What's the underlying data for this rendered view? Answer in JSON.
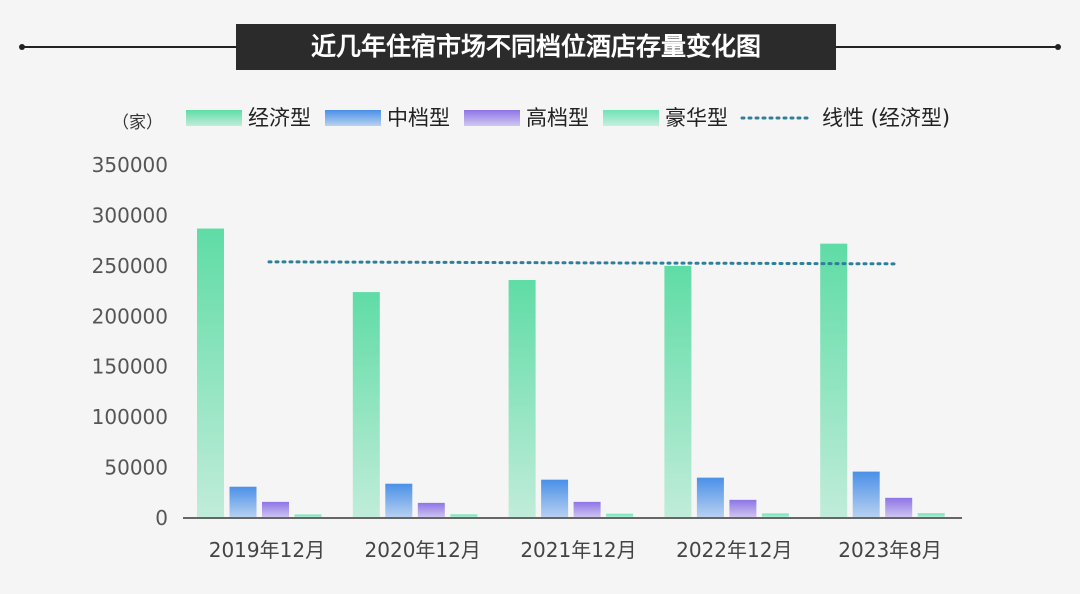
{
  "chart_data": {
    "type": "bar",
    "title": "近几年住宿市场不同档位酒店存量变化图",
    "unit_label": "（家）",
    "categories": [
      "2019年12月",
      "2020年12月",
      "2021年12月",
      "2022年12月",
      "2023年8月"
    ],
    "series": [
      {
        "name": "经济型",
        "values": [
          287000,
          224000,
          236000,
          250000,
          272000
        ],
        "color": "#5fdca6"
      },
      {
        "name": "中档型",
        "values": [
          31000,
          34000,
          38000,
          40000,
          46000
        ],
        "color": "#4a90e8"
      },
      {
        "name": "高档型",
        "values": [
          16000,
          15000,
          16000,
          18000,
          20000
        ],
        "color": "#8e74e6"
      },
      {
        "name": "豪华型",
        "values": [
          3500,
          3600,
          4200,
          4500,
          4700
        ],
        "color": "#6fe3b6"
      }
    ],
    "trendline": {
      "name": "线性 (经济型)",
      "values": [
        254000,
        253500,
        253000,
        252500,
        252000
      ],
      "color": "#2f7f9a",
      "style": "dotted"
    },
    "yticks": [
      "0",
      "50000",
      "100000",
      "150000",
      "200000",
      "250000",
      "300000",
      "350000"
    ],
    "ylim": [
      0,
      350000
    ],
    "grid": false,
    "legend_position": "top"
  }
}
